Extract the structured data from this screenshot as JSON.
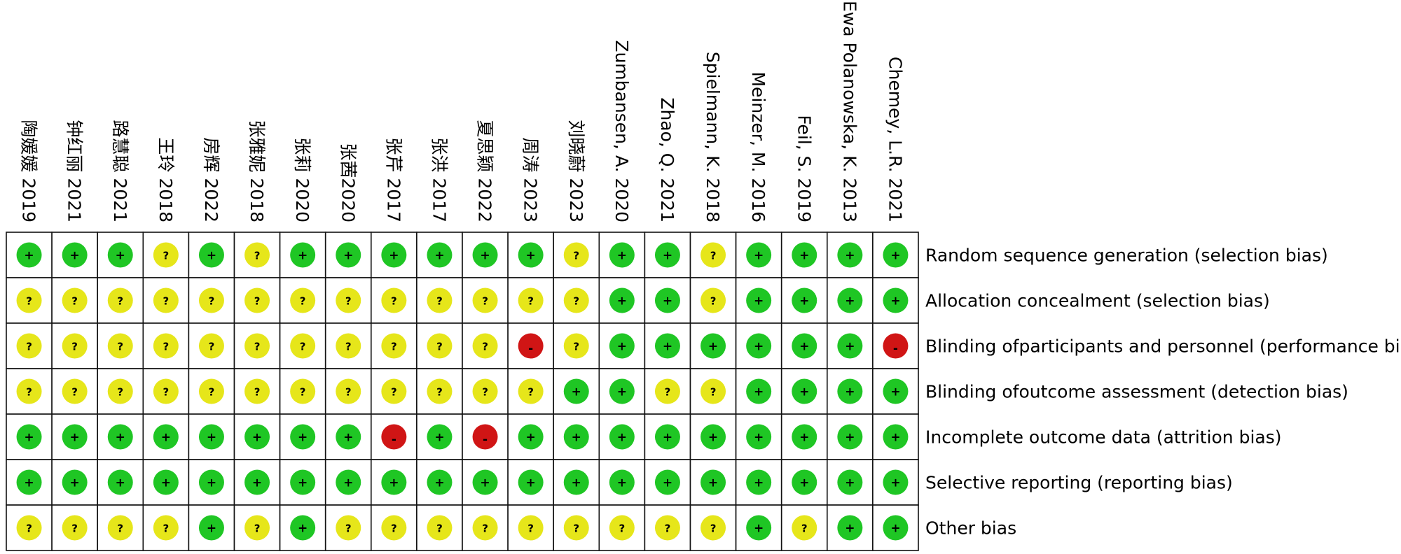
{
  "chart_data": {
    "type": "table",
    "title": "",
    "studies": [
      "陶媛媛 2019",
      "钟红丽 2021",
      "路慧聪 2021",
      "王玲 2018",
      "房辉 2022",
      "张雅妮 2018",
      "张莉 2020",
      "张茜2020",
      "张芹 2017",
      "张洪 2017",
      "夏思颖 2022",
      "周涛 2023",
      "刘晓蔚 2023",
      "Zumbansen, A. 2020",
      "Zhao, Q. 2021",
      "Spielmann, K. 2018",
      "Meinzer, M. 2016",
      "Feil, S. 2019",
      "Ewa Polanowska, K. 2013",
      "Chemey, L.R. 2021"
    ],
    "domains": [
      "Random sequence generation (selection bias)",
      "Allocation concealment (selection bias)",
      "Blinding ofparticipants and personnel (performance bias)",
      "Blinding ofoutcome assessment (detection bias)",
      "Incomplete outcome data (attrition bias)",
      "Selective reporting (reporting bias)",
      "Other bias"
    ],
    "legend": {
      "low": {
        "symbol": "+",
        "color": "#1fc624"
      },
      "unclear": {
        "symbol": "?",
        "color": "#e6e61a"
      },
      "high": {
        "symbol": "-",
        "color": "#d01515"
      }
    },
    "ratings": [
      [
        "low",
        "low",
        "low",
        "unclear",
        "low",
        "unclear",
        "low",
        "low",
        "low",
        "low",
        "low",
        "low",
        "unclear",
        "low",
        "low",
        "unclear",
        "low",
        "low",
        "low",
        "low"
      ],
      [
        "unclear",
        "unclear",
        "unclear",
        "unclear",
        "unclear",
        "unclear",
        "unclear",
        "unclear",
        "unclear",
        "unclear",
        "unclear",
        "unclear",
        "unclear",
        "low",
        "low",
        "unclear",
        "low",
        "low",
        "low",
        "low"
      ],
      [
        "unclear",
        "unclear",
        "unclear",
        "unclear",
        "unclear",
        "unclear",
        "unclear",
        "unclear",
        "unclear",
        "unclear",
        "unclear",
        "high",
        "unclear",
        "low",
        "low",
        "low",
        "low",
        "low",
        "low",
        "high"
      ],
      [
        "unclear",
        "unclear",
        "unclear",
        "unclear",
        "unclear",
        "unclear",
        "unclear",
        "unclear",
        "unclear",
        "unclear",
        "unclear",
        "unclear",
        "low",
        "low",
        "unclear",
        "unclear",
        "low",
        "low",
        "low",
        "low"
      ],
      [
        "low",
        "low",
        "low",
        "low",
        "low",
        "low",
        "low",
        "low",
        "high",
        "low",
        "high",
        "low",
        "low",
        "low",
        "low",
        "low",
        "low",
        "low",
        "low",
        "low"
      ],
      [
        "low",
        "low",
        "low",
        "low",
        "low",
        "low",
        "low",
        "low",
        "low",
        "low",
        "low",
        "low",
        "low",
        "low",
        "low",
        "low",
        "low",
        "low",
        "low",
        "low"
      ],
      [
        "unclear",
        "unclear",
        "unclear",
        "unclear",
        "low",
        "unclear",
        "low",
        "unclear",
        "unclear",
        "unclear",
        "unclear",
        "unclear",
        "unclear",
        "unclear",
        "unclear",
        "unclear",
        "low",
        "unclear",
        "low",
        "low"
      ]
    ]
  }
}
